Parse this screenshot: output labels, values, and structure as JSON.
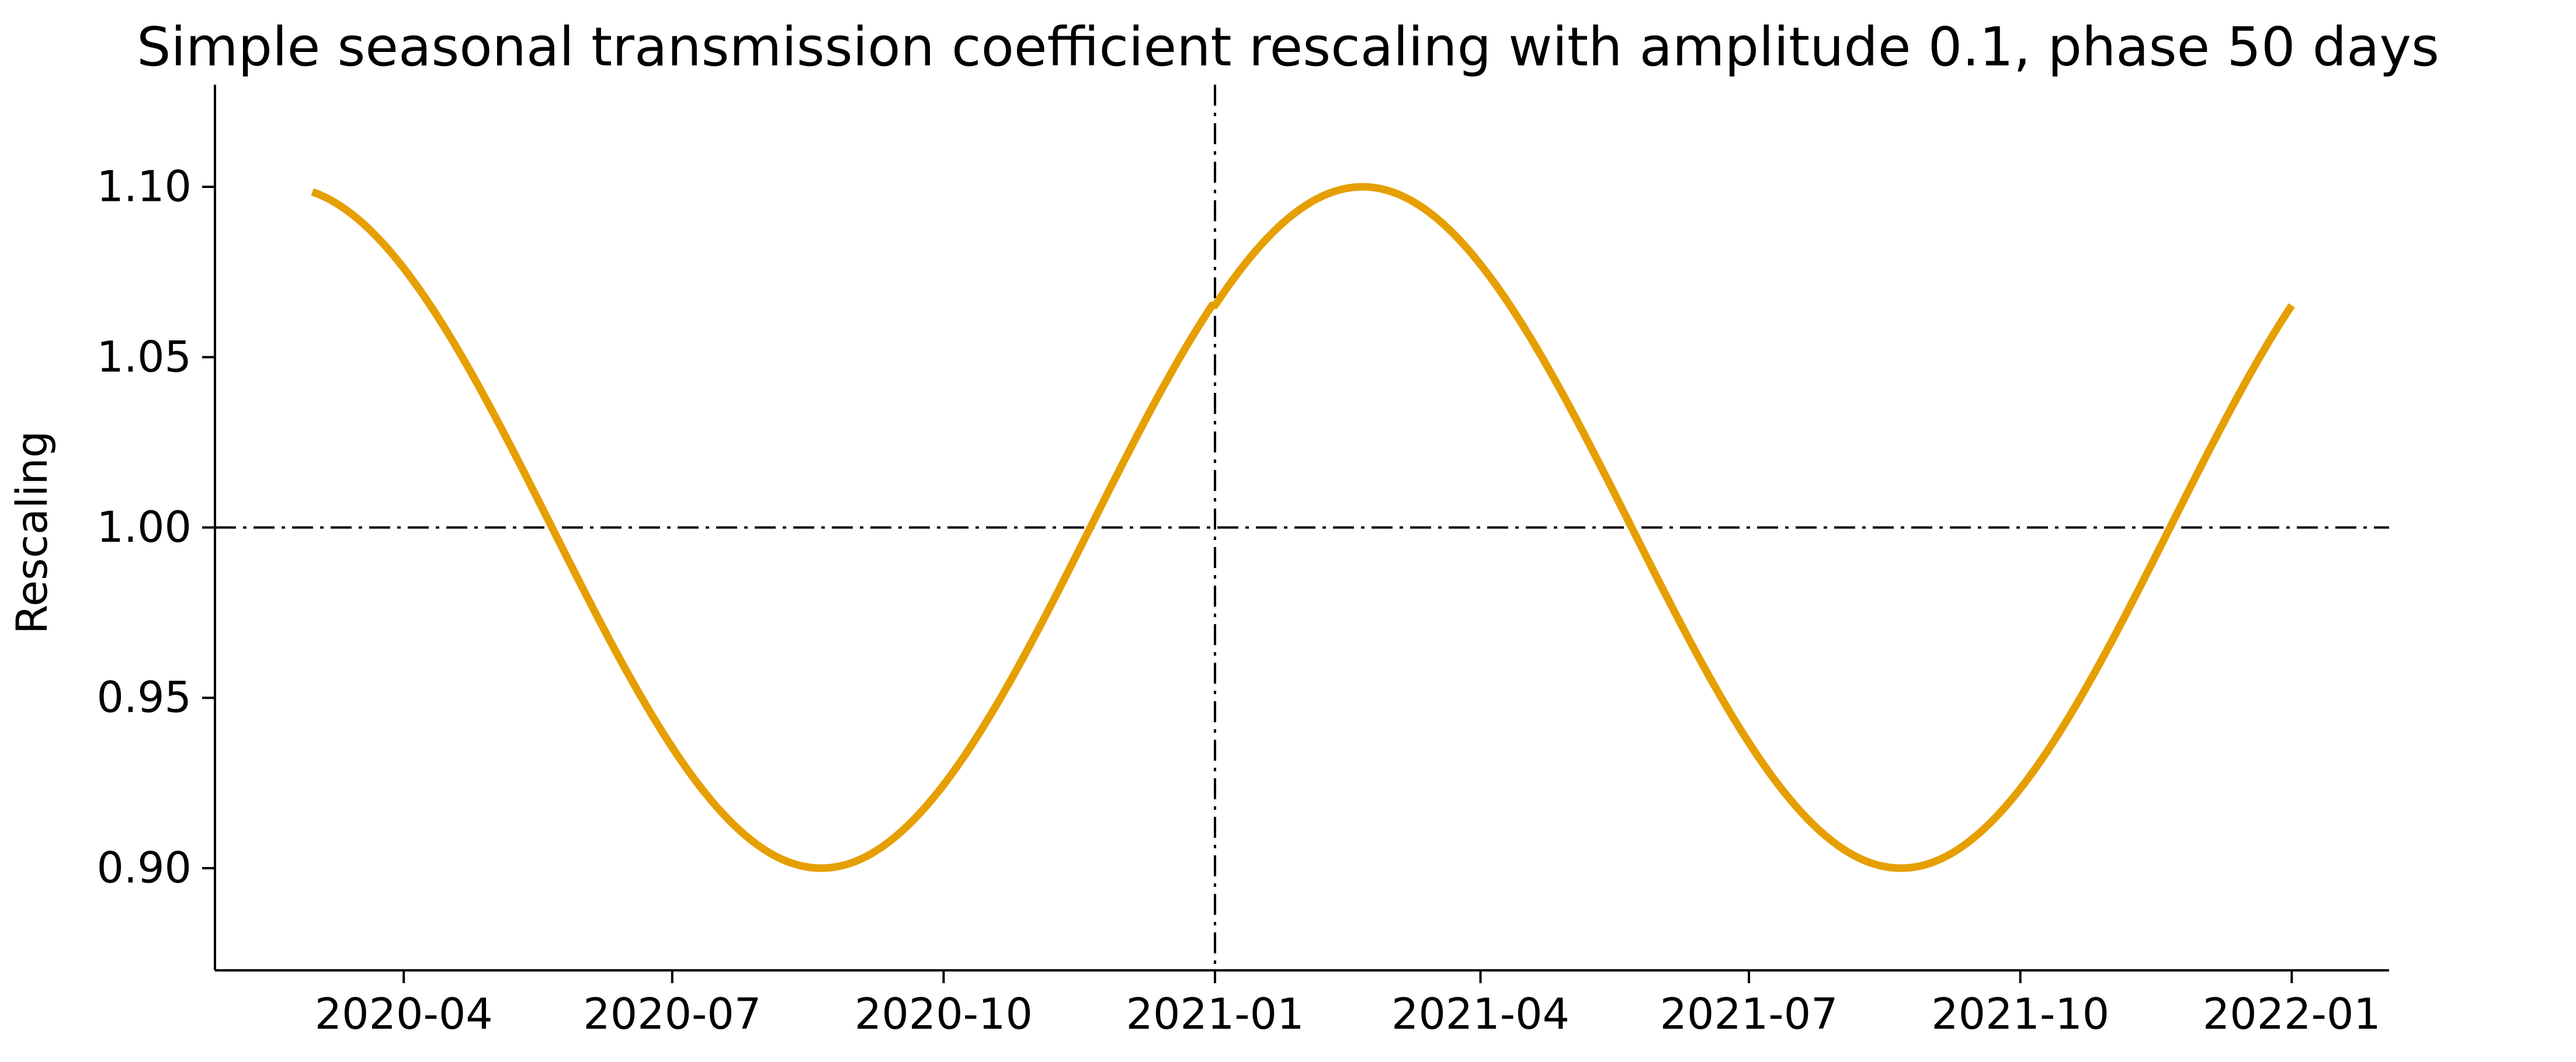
{
  "chart_data": {
    "type": "line",
    "title": "Simple seasonal transmission coefficient rescaling with amplitude 0.1, phase 50 days",
    "xlabel": "",
    "ylabel": "Rescaling",
    "x_range": [
      "2020-03-01",
      "2022-01-01"
    ],
    "xlim": [
      "2020-01-28",
      "2022-02-03"
    ],
    "ylim": [
      0.87,
      1.13
    ],
    "x_ticks": [
      "2020-04",
      "2020-07",
      "2020-10",
      "2021-01",
      "2021-04",
      "2021-07",
      "2021-10",
      "2022-01"
    ],
    "y_ticks": [
      "0.90",
      "0.95",
      "1.00",
      "1.05",
      "1.10"
    ],
    "series": [
      {
        "amplitude": 0.1,
        "phase_days": 50,
        "color": "#E69F00",
        "x": [
          "2020-03-01",
          "2020-04-01",
          "2020-05-01",
          "2020-06-01",
          "2020-07-01",
          "2020-08-01",
          "2020-08-21",
          "2020-09-01",
          "2020-10-01",
          "2020-11-01",
          "2020-11-19",
          "2020-12-01",
          "2021-01-01",
          "2021-02-19",
          "2021-04-01",
          "2021-05-01",
          "2021-05-21",
          "2021-07-01",
          "2021-08-21",
          "2021-10-01",
          "2021-11-01",
          "2021-11-19",
          "2021-12-01",
          "2022-01-01"
        ],
        "values": [
          1.0993,
          1.0738,
          1.0309,
          0.9813,
          0.9392,
          0.9057,
          0.9002,
          0.9012,
          0.9198,
          0.9576,
          0.9996,
          1.0222,
          1.0641,
          1.1,
          1.0721,
          1.0328,
          1.0,
          0.9367,
          0.9,
          0.9267,
          0.9612,
          0.9996,
          1.0204,
          1.0641
        ]
      }
    ],
    "reference_lines": [
      {
        "orientation": "horizontal",
        "y": 1.0,
        "style": "dashdot",
        "color": "#000000"
      },
      {
        "orientation": "vertical",
        "x": "2021-01-01",
        "style": "dashdot",
        "color": "#000000"
      }
    ],
    "grid": false,
    "legend": "none"
  }
}
